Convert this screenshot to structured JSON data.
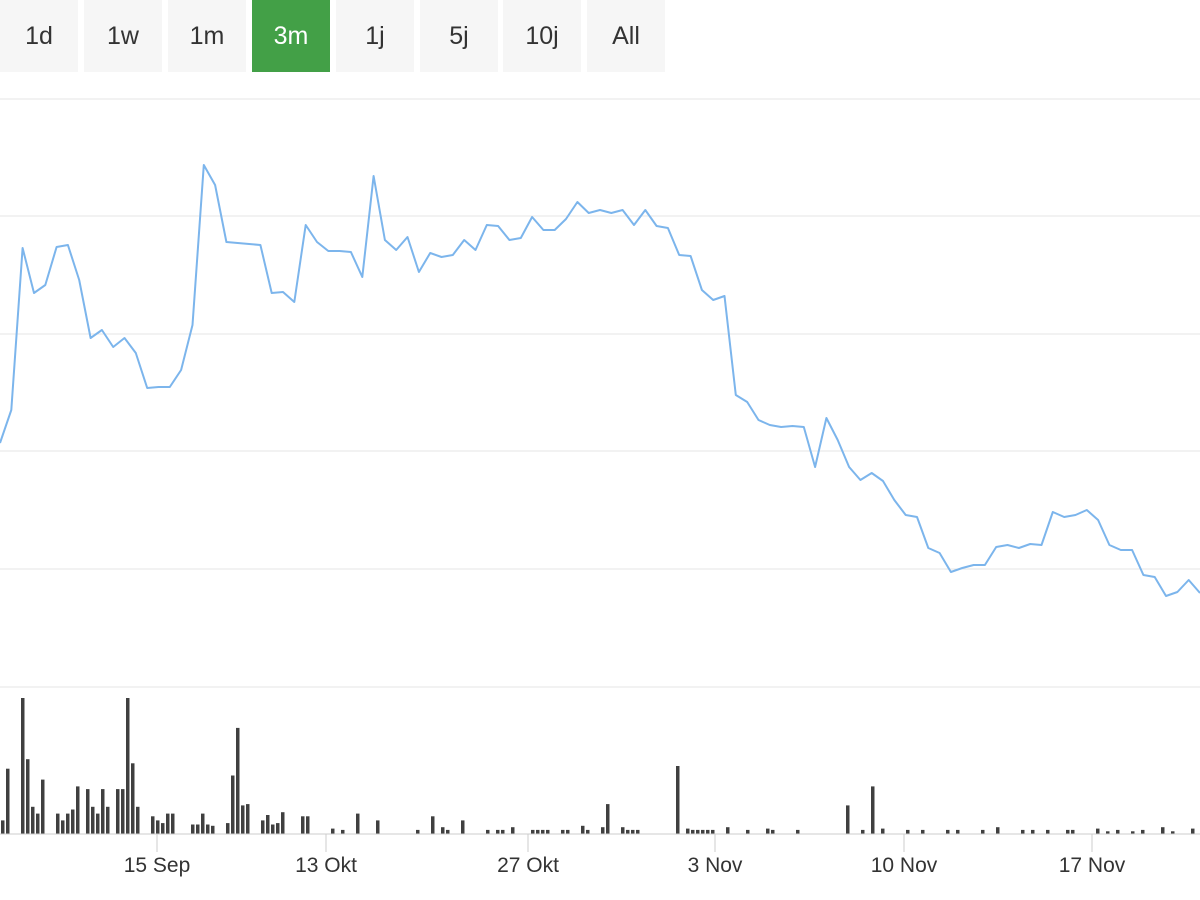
{
  "range_selector": {
    "buttons": [
      "1d",
      "1w",
      "1m",
      "3m",
      "1j",
      "5j",
      "10j",
      "All"
    ],
    "active": "3m"
  },
  "colors": {
    "price_line": "#7cb5ec",
    "volume_bar": "#404040",
    "active_button": "#43a047",
    "button_bg": "#f6f6f6",
    "grid": "#e6e6e6"
  },
  "chart_data": {
    "type": "line",
    "xlabel": "",
    "ylabel": "",
    "grid": true,
    "x_ticks": [
      "15 Sep",
      "13 Okt",
      "27 Okt",
      "3 Nov",
      "10 Nov",
      "17 Nov"
    ],
    "x_tick_positions": [
      37,
      65,
      79,
      86,
      93,
      100
    ],
    "series": [
      {
        "points": [
          [
            0,
            443
          ],
          [
            1,
            410
          ],
          [
            2,
            248
          ],
          [
            3,
            293
          ],
          [
            4,
            285
          ],
          [
            5,
            247
          ],
          [
            6,
            245
          ],
          [
            7,
            280
          ],
          [
            8,
            338
          ],
          [
            9,
            330
          ],
          [
            10,
            347
          ],
          [
            11,
            338
          ],
          [
            12,
            353
          ],
          [
            13,
            388
          ],
          [
            14,
            387
          ],
          [
            15,
            387
          ],
          [
            16,
            370
          ],
          [
            17,
            325
          ],
          [
            18,
            165
          ],
          [
            19,
            185
          ],
          [
            20,
            242
          ],
          [
            21,
            243
          ],
          [
            22,
            244
          ],
          [
            23,
            245
          ],
          [
            24,
            293
          ],
          [
            25,
            292
          ],
          [
            26,
            302
          ],
          [
            27,
            225
          ],
          [
            28,
            242
          ],
          [
            29,
            251
          ],
          [
            30,
            251
          ],
          [
            31,
            252
          ],
          [
            32,
            277
          ],
          [
            33,
            176
          ],
          [
            34,
            240
          ],
          [
            35,
            250
          ],
          [
            36,
            237
          ],
          [
            37,
            272
          ],
          [
            38,
            253
          ],
          [
            39,
            257
          ],
          [
            40,
            255
          ],
          [
            41,
            240
          ],
          [
            42,
            250
          ],
          [
            43,
            225
          ],
          [
            44,
            226
          ],
          [
            45,
            240
          ],
          [
            46,
            238
          ],
          [
            47,
            217
          ],
          [
            48,
            230
          ],
          [
            49,
            230
          ],
          [
            50,
            219
          ],
          [
            51,
            202
          ],
          [
            52,
            213
          ],
          [
            53,
            210
          ],
          [
            54,
            213
          ],
          [
            55,
            210
          ],
          [
            56,
            225
          ],
          [
            57,
            210
          ],
          [
            58,
            226
          ],
          [
            59,
            228
          ],
          [
            60,
            255
          ],
          [
            61,
            256
          ],
          [
            62,
            290
          ],
          [
            63,
            300
          ],
          [
            64,
            296
          ],
          [
            65,
            395
          ],
          [
            66,
            402
          ],
          [
            67,
            420
          ],
          [
            68,
            425
          ],
          [
            69,
            427
          ],
          [
            70,
            426
          ],
          [
            71,
            427
          ],
          [
            72,
            467
          ],
          [
            73,
            418
          ],
          [
            74,
            440
          ],
          [
            75,
            467
          ],
          [
            76,
            480
          ],
          [
            77,
            473
          ],
          [
            78,
            481
          ],
          [
            79,
            500
          ],
          [
            80,
            515
          ],
          [
            81,
            517
          ],
          [
            82,
            548
          ],
          [
            83,
            553
          ],
          [
            84,
            572
          ],
          [
            85,
            568
          ],
          [
            86,
            565
          ],
          [
            87,
            565
          ],
          [
            88,
            547
          ],
          [
            89,
            545
          ],
          [
            90,
            548
          ],
          [
            91,
            544
          ],
          [
            92,
            545
          ],
          [
            93,
            512
          ],
          [
            94,
            517
          ],
          [
            95,
            515
          ],
          [
            96,
            510
          ],
          [
            97,
            520
          ],
          [
            98,
            545
          ],
          [
            99,
            550
          ],
          [
            100,
            550
          ],
          [
            101,
            575
          ],
          [
            102,
            577
          ],
          [
            103,
            596
          ],
          [
            104,
            592
          ],
          [
            105,
            580
          ],
          [
            106,
            593
          ]
        ]
      },
      {
        "bars": [
          [
            0,
            10
          ],
          [
            1,
            48
          ],
          [
            4,
            100
          ],
          [
            5,
            55
          ],
          [
            6,
            20
          ],
          [
            7,
            15
          ],
          [
            8,
            40
          ],
          [
            11,
            15
          ],
          [
            12,
            10
          ],
          [
            13,
            15
          ],
          [
            14,
            18
          ],
          [
            15,
            35
          ],
          [
            17,
            33
          ],
          [
            18,
            20
          ],
          [
            19,
            15
          ],
          [
            20,
            33
          ],
          [
            21,
            20
          ],
          [
            23,
            33
          ],
          [
            24,
            33
          ],
          [
            25,
            100
          ],
          [
            26,
            52
          ],
          [
            27,
            20
          ],
          [
            30,
            13
          ],
          [
            31,
            10
          ],
          [
            32,
            8
          ],
          [
            33,
            15
          ],
          [
            34,
            15
          ],
          [
            38,
            7
          ],
          [
            39,
            7
          ],
          [
            40,
            15
          ],
          [
            41,
            7
          ],
          [
            42,
            6
          ],
          [
            45,
            8
          ],
          [
            46,
            43
          ],
          [
            47,
            78
          ],
          [
            48,
            21
          ],
          [
            49,
            22
          ],
          [
            52,
            10
          ],
          [
            53,
            14
          ],
          [
            54,
            7
          ],
          [
            55,
            8
          ],
          [
            56,
            16
          ],
          [
            60,
            13
          ],
          [
            61,
            13
          ],
          [
            66,
            4
          ],
          [
            68,
            3
          ],
          [
            71,
            15
          ],
          [
            75,
            10
          ],
          [
            83,
            3
          ],
          [
            86,
            13
          ],
          [
            88,
            5
          ],
          [
            89,
            3
          ],
          [
            92,
            10
          ],
          [
            97,
            3
          ],
          [
            99,
            3
          ],
          [
            100,
            3
          ],
          [
            102,
            5
          ],
          [
            106,
            3
          ],
          [
            107,
            3
          ],
          [
            108,
            3
          ],
          [
            109,
            3
          ],
          [
            112,
            3
          ],
          [
            113,
            3
          ],
          [
            116,
            6
          ],
          [
            117,
            3
          ],
          [
            120,
            5
          ],
          [
            121,
            22
          ],
          [
            124,
            5
          ],
          [
            125,
            3
          ],
          [
            126,
            3
          ],
          [
            127,
            3
          ],
          [
            135,
            50
          ],
          [
            137,
            4
          ],
          [
            138,
            3
          ],
          [
            139,
            3
          ],
          [
            140,
            3
          ],
          [
            141,
            3
          ],
          [
            142,
            3
          ],
          [
            145,
            5
          ],
          [
            149,
            3
          ],
          [
            153,
            4
          ],
          [
            154,
            3
          ],
          [
            159,
            3
          ],
          [
            169,
            21
          ],
          [
            172,
            3
          ],
          [
            174,
            35
          ],
          [
            176,
            4
          ],
          [
            181,
            3
          ],
          [
            184,
            3
          ],
          [
            189,
            3
          ],
          [
            191,
            3
          ],
          [
            196,
            3
          ],
          [
            199,
            5
          ],
          [
            204,
            3
          ],
          [
            206,
            3
          ],
          [
            209,
            3
          ],
          [
            213,
            3
          ],
          [
            214,
            3
          ],
          [
            219,
            4
          ],
          [
            221,
            2
          ],
          [
            223,
            3
          ],
          [
            226,
            2
          ],
          [
            228,
            3
          ],
          [
            232,
            5
          ],
          [
            234,
            2
          ],
          [
            238,
            4
          ]
        ]
      }
    ]
  }
}
